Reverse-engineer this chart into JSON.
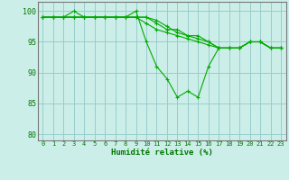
{
  "series": [
    [
      99,
      99,
      99,
      99,
      99,
      99,
      99,
      99,
      99,
      99,
      99,
      98,
      97,
      97,
      96,
      96,
      95,
      94,
      94,
      94,
      95,
      95,
      94,
      94
    ],
    [
      99,
      99,
      99,
      99,
      99,
      99,
      99,
      99,
      99,
      99,
      99,
      98.5,
      97.5,
      96.5,
      96,
      95.5,
      95,
      94,
      94,
      94,
      95,
      95,
      94,
      94
    ],
    [
      99,
      99,
      99,
      99,
      99,
      99,
      99,
      99,
      99,
      99,
      98,
      97,
      96.5,
      96,
      95.5,
      95,
      94.5,
      94,
      94,
      94,
      95,
      95,
      94,
      94
    ],
    [
      99,
      99,
      99,
      100,
      99,
      99,
      99,
      99,
      99,
      100,
      95,
      91,
      89,
      86,
      87,
      86,
      91,
      94,
      94,
      94,
      95,
      95,
      94,
      94
    ]
  ],
  "x": [
    0,
    1,
    2,
    3,
    4,
    5,
    6,
    7,
    8,
    9,
    10,
    11,
    12,
    13,
    14,
    15,
    16,
    17,
    18,
    19,
    20,
    21,
    22,
    23
  ],
  "xlabel": "Humidité relative (%)",
  "ylim": [
    79,
    101.5
  ],
  "yticks": [
    80,
    85,
    90,
    95,
    100
  ],
  "xticks": [
    0,
    1,
    2,
    3,
    4,
    5,
    6,
    7,
    8,
    9,
    10,
    11,
    12,
    13,
    14,
    15,
    16,
    17,
    18,
    19,
    20,
    21,
    22,
    23
  ],
  "line_color": "#00aa00",
  "marker": "+",
  "bg_color": "#cceee8",
  "grid_color": "#99cccc",
  "axis_color": "#777777",
  "label_color": "#007700",
  "figsize": [
    3.2,
    2.0
  ],
  "dpi": 100
}
